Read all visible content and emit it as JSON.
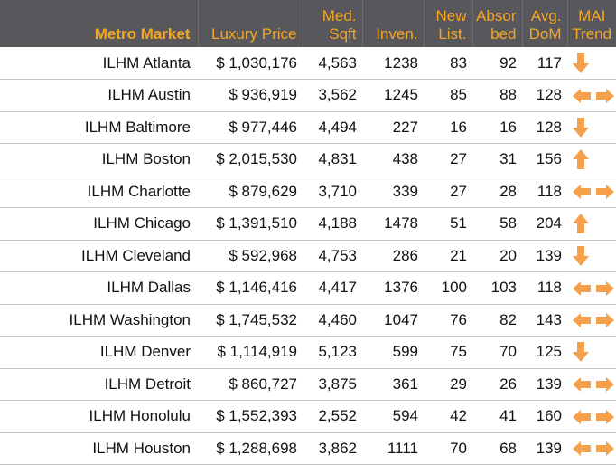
{
  "header": {
    "market": "Metro Market",
    "price": "Luxury Price",
    "sqft_line1": "Med.",
    "sqft_line2": "Sqft",
    "inven": "Inven.",
    "newlist_line1": "New",
    "newlist_line2": "List.",
    "absorbed_line1": "Absor",
    "absorbed_line2": "bed",
    "dom_line1": "Avg.",
    "dom_line2": "DoM",
    "trend_line1": "MAI",
    "trend_line2": "Trend"
  },
  "colors": {
    "header_bg": "#58575c",
    "header_text": "#f5a623",
    "arrow": "#f5a04a"
  },
  "rows": [
    {
      "market": "ILHM Atlanta",
      "price": "$ 1,030,176",
      "sqft": "4,563",
      "inven": "1238",
      "new_list": "83",
      "absorbed": "92",
      "dom": "117",
      "trend": "down"
    },
    {
      "market": "ILHM Austin",
      "price": "$ 936,919",
      "sqft": "3,562",
      "inven": "1245",
      "new_list": "85",
      "absorbed": "88",
      "dom": "128",
      "trend": "flat"
    },
    {
      "market": "ILHM Baltimore",
      "price": "$ 977,446",
      "sqft": "4,494",
      "inven": "227",
      "new_list": "16",
      "absorbed": "16",
      "dom": "128",
      "trend": "down"
    },
    {
      "market": "ILHM Boston",
      "price": "$ 2,015,530",
      "sqft": "4,831",
      "inven": "438",
      "new_list": "27",
      "absorbed": "31",
      "dom": "156",
      "trend": "up"
    },
    {
      "market": "ILHM Charlotte",
      "price": "$ 879,629",
      "sqft": "3,710",
      "inven": "339",
      "new_list": "27",
      "absorbed": "28",
      "dom": "118",
      "trend": "flat"
    },
    {
      "market": "ILHM Chicago",
      "price": "$ 1,391,510",
      "sqft": "4,188",
      "inven": "1478",
      "new_list": "51",
      "absorbed": "58",
      "dom": "204",
      "trend": "up"
    },
    {
      "market": "ILHM Cleveland",
      "price": "$ 592,968",
      "sqft": "4,753",
      "inven": "286",
      "new_list": "21",
      "absorbed": "20",
      "dom": "139",
      "trend": "down"
    },
    {
      "market": "ILHM Dallas",
      "price": "$ 1,146,416",
      "sqft": "4,417",
      "inven": "1376",
      "new_list": "100",
      "absorbed": "103",
      "dom": "118",
      "trend": "flat"
    },
    {
      "market": "ILHM Washington",
      "price": "$ 1,745,532",
      "sqft": "4,460",
      "inven": "1047",
      "new_list": "76",
      "absorbed": "82",
      "dom": "143",
      "trend": "flat"
    },
    {
      "market": "ILHM Denver",
      "price": "$ 1,114,919",
      "sqft": "5,123",
      "inven": "599",
      "new_list": "75",
      "absorbed": "70",
      "dom": "125",
      "trend": "down"
    },
    {
      "market": "ILHM Detroit",
      "price": "$ 860,727",
      "sqft": "3,875",
      "inven": "361",
      "new_list": "29",
      "absorbed": "26",
      "dom": "139",
      "trend": "flat"
    },
    {
      "market": "ILHM Honolulu",
      "price": "$ 1,552,393",
      "sqft": "2,552",
      "inven": "594",
      "new_list": "42",
      "absorbed": "41",
      "dom": "160",
      "trend": "flat"
    },
    {
      "market": "ILHM Houston",
      "price": "$ 1,288,698",
      "sqft": "3,862",
      "inven": "1111",
      "new_list": "70",
      "absorbed": "68",
      "dom": "139",
      "trend": "flat"
    }
  ]
}
